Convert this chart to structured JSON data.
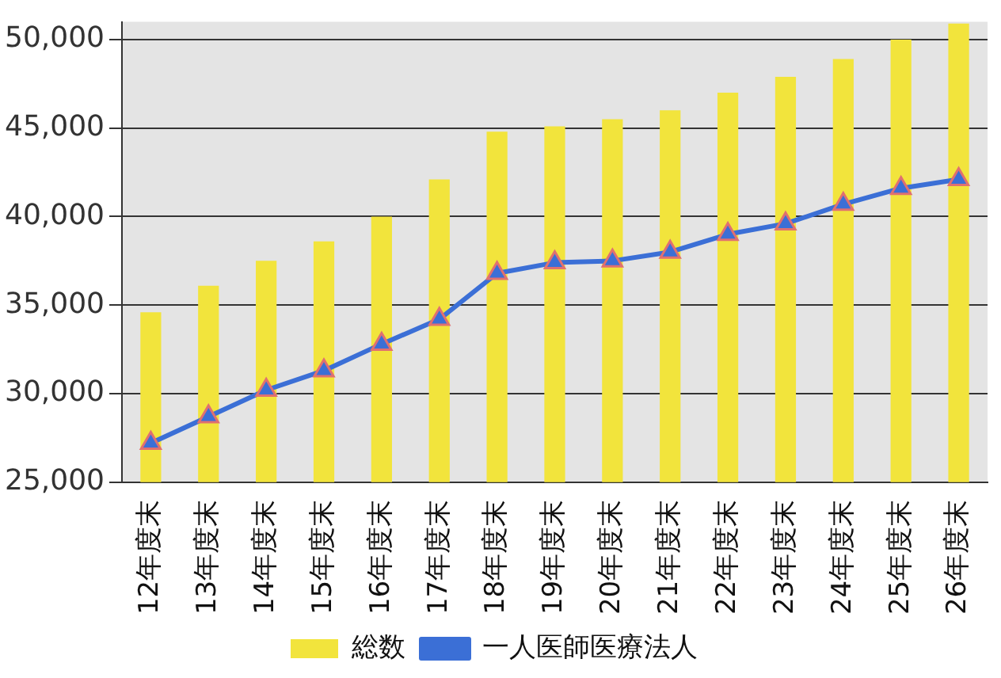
{
  "chart_data": {
    "type": "bar",
    "categories": [
      "12年度末",
      "13年度末",
      "14年度末",
      "15年度末",
      "16年度末",
      "17年度末",
      "18年度末",
      "19年度末",
      "20年度末",
      "21年度末",
      "22年度末",
      "23年度末",
      "24年度末",
      "25年度末",
      "26年度末"
    ],
    "series": [
      {
        "name": "総数",
        "color": "#f2e43c",
        "values": [
          34600,
          36100,
          37500,
          38600,
          40000,
          42100,
          44800,
          45100,
          45500,
          46000,
          47000,
          47900,
          48900,
          50000,
          50900
        ]
      },
      {
        "name": "一人医師医療法人",
        "type": "line",
        "color": "#3b6fd6",
        "values": [
          27200,
          28700,
          30200,
          31300,
          32800,
          34200,
          36800,
          37400,
          37500,
          38000,
          39000,
          39600,
          40700,
          41600,
          42100
        ]
      }
    ],
    "ylim": [
      25000,
      51000
    ],
    "yticks": [
      {
        "value": 25000,
        "label": "25,000"
      },
      {
        "value": 30000,
        "label": "30,000"
      },
      {
        "value": 35000,
        "label": "35,000"
      },
      {
        "value": 40000,
        "label": "40,000"
      },
      {
        "value": 45000,
        "label": "45,000"
      },
      {
        "value": 50000,
        "label": "50,000"
      }
    ],
    "grid": "y",
    "legend": "bottom",
    "marker": "triangle",
    "line_style": "solid"
  }
}
